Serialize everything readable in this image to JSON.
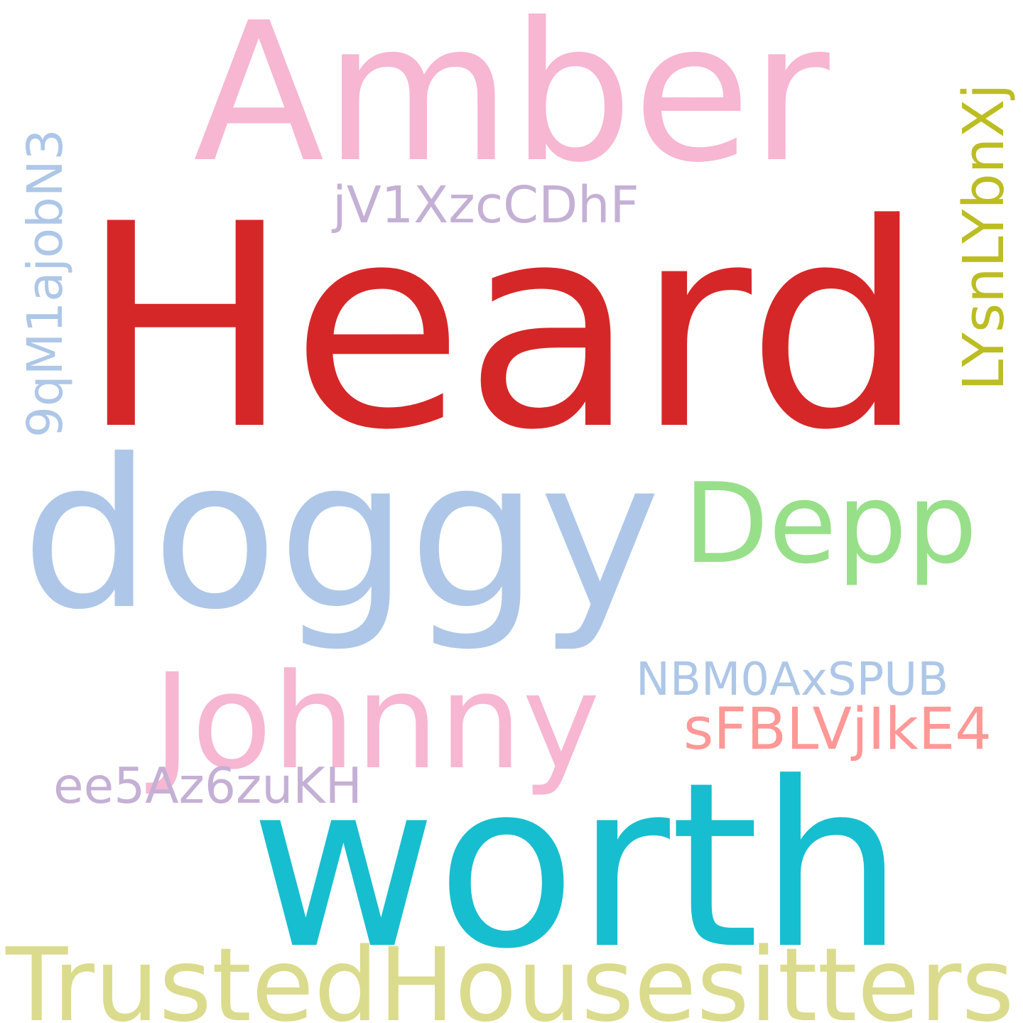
{
  "words": [
    {
      "key": "amber",
      "text": "Amber",
      "color": "#f7b6d2",
      "orientation": "horizontal"
    },
    {
      "key": "heard",
      "text": "Heard",
      "color": "#d62728",
      "orientation": "horizontal"
    },
    {
      "key": "doggy",
      "text": "doggy",
      "color": "#aec7e8",
      "orientation": "horizontal"
    },
    {
      "key": "depp",
      "text": "Depp",
      "color": "#98df8a",
      "orientation": "horizontal"
    },
    {
      "key": "johnny",
      "text": "Johnny",
      "color": "#f7b6d2",
      "orientation": "horizontal"
    },
    {
      "key": "worth",
      "text": "worth",
      "color": "#17becf",
      "orientation": "horizontal"
    },
    {
      "key": "trustedhousesitters",
      "text": "TrustedHousesitters",
      "color": "#dbdb8d",
      "orientation": "horizontal"
    },
    {
      "key": "jv1xzccdhf",
      "text": "jV1XzcCDhF",
      "color": "#c5b0d5",
      "orientation": "horizontal"
    },
    {
      "key": "nbm0axspub",
      "text": "NBM0AxSPUB",
      "color": "#aec7e8",
      "orientation": "horizontal"
    },
    {
      "key": "sfblvjike4",
      "text": "sFBLVjIkE4",
      "color": "#ff9896",
      "orientation": "horizontal"
    },
    {
      "key": "ee5az6zukh",
      "text": "ee5Az6zuKH",
      "color": "#c5b0d5",
      "orientation": "horizontal"
    },
    {
      "key": "9qm1ajobn3",
      "text": "9qM1ajobN3",
      "color": "#aec7e8",
      "orientation": "vertical"
    },
    {
      "key": "lysnlybnxj",
      "text": "LYsnLYbnXj",
      "color": "#bcbd22",
      "orientation": "vertical"
    }
  ]
}
